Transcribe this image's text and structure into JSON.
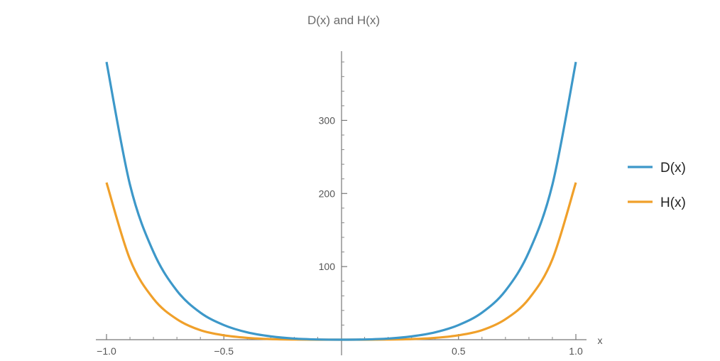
{
  "chart_data": {
    "type": "line",
    "title": "D(x) and H(x)",
    "xlabel": "x",
    "ylabel": "",
    "xlim": [
      -1.0,
      1.0
    ],
    "ylim": [
      0,
      385
    ],
    "x_ticks": [
      -1.0,
      -0.5,
      0.5,
      1.0
    ],
    "x_tick_labels": [
      "−1.0",
      "−0.5",
      "0.5",
      "1.0"
    ],
    "y_ticks": [
      100,
      200,
      300
    ],
    "y_tick_labels": [
      "100",
      "200",
      "300"
    ],
    "grid": false,
    "legend_position": "right",
    "x": [
      -1.0,
      -0.9,
      -0.8,
      -0.7,
      -0.6,
      -0.5,
      -0.4,
      -0.3,
      -0.2,
      -0.1,
      0.0,
      0.1,
      0.2,
      0.3,
      0.4,
      0.5,
      0.6,
      0.7,
      0.8,
      0.9,
      1.0
    ],
    "series": [
      {
        "name": "D(x)",
        "color": "#3d98c9",
        "values": [
          380,
          212,
          120,
          67,
          37,
          20,
          10,
          4.5,
          1.5,
          0.3,
          0,
          0.3,
          1.5,
          4.5,
          10,
          20,
          37,
          67,
          120,
          212,
          380
        ]
      },
      {
        "name": "H(x)",
        "color": "#f0a02a",
        "values": [
          215,
          110,
          56,
          28,
          13,
          6,
          2.5,
          0.8,
          0.2,
          0,
          0,
          0,
          0.2,
          0.8,
          2.5,
          6,
          13,
          28,
          56,
          110,
          215
        ]
      }
    ]
  }
}
